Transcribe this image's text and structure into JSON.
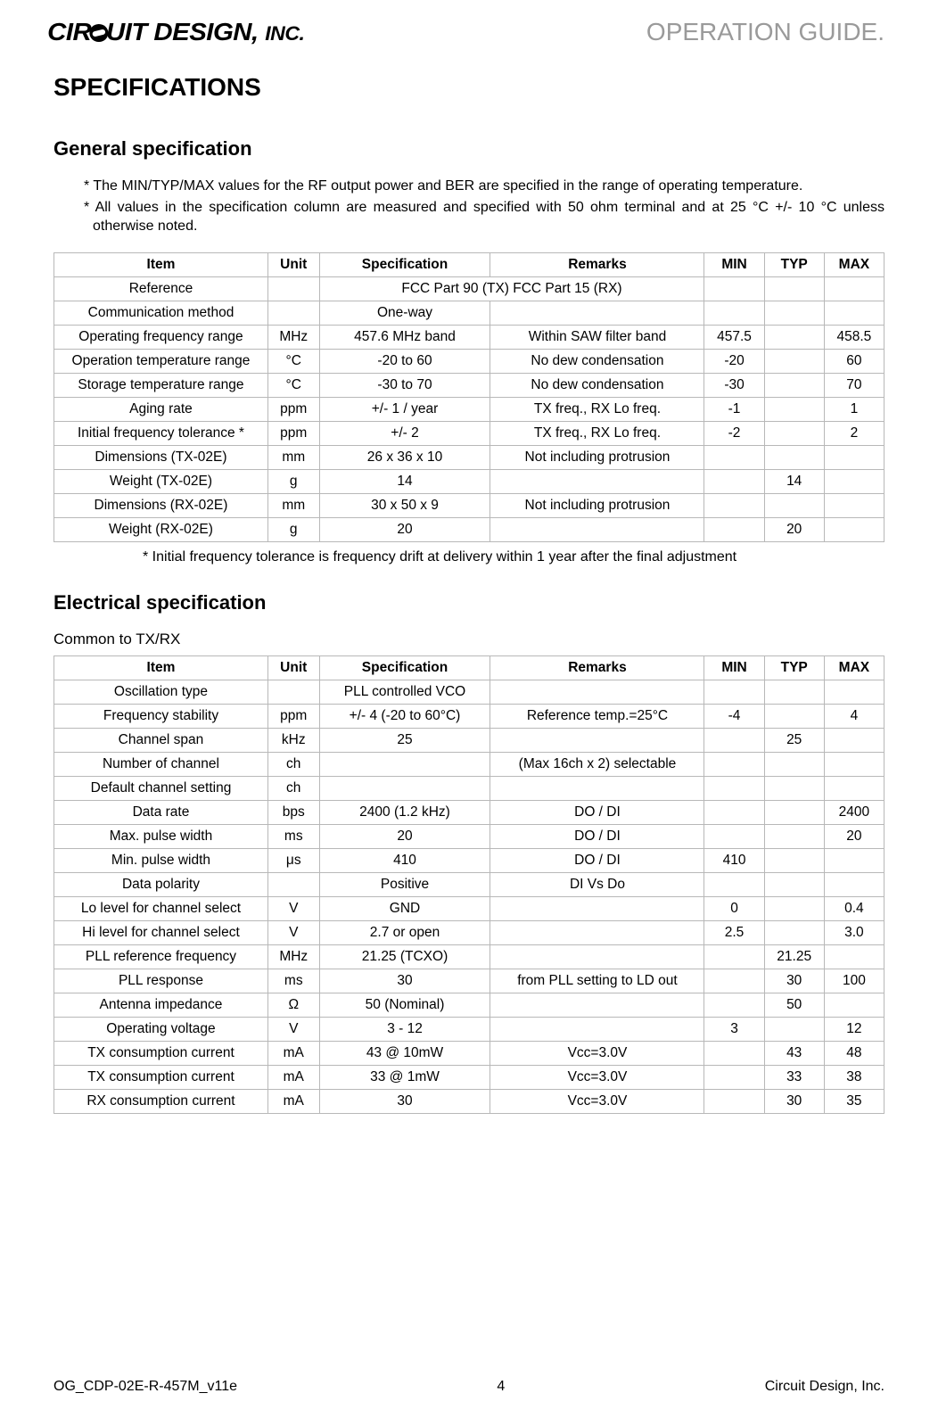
{
  "header": {
    "company_logo_text_left": "CIR",
    "company_logo_text_mid": "UIT DESIGN,",
    "company_logo_text_inc": "INC.",
    "guide_title": "OPERATION GUIDE."
  },
  "main_title": "SPECIFICATIONS",
  "general": {
    "heading": "General specification",
    "note1": "* The MIN/TYP/MAX values for the RF output power and BER are specified in the range of operating temperature.",
    "note2": "* All values in the specification column are measured and specified with 50 ohm terminal and at 25 °C +/- 10 °C unless otherwise noted.",
    "columns": [
      "Item",
      "Unit",
      "Specification",
      "Remarks",
      "MIN",
      "TYP",
      "MAX"
    ],
    "rows": [
      [
        "Reference",
        "",
        "FCC Part 90 (TX)   FCC Part 15 (RX)",
        "",
        "",
        "",
        ""
      ],
      [
        "Communication method",
        "",
        "One-way",
        "",
        "",
        "",
        ""
      ],
      [
        "Operating frequency range",
        "MHz",
        "457.6 MHz band",
        "Within SAW filter band",
        "457.5",
        "",
        "458.5"
      ],
      [
        "Operation temperature range",
        "°C",
        "-20 to 60",
        "No dew condensation",
        "-20",
        "",
        "60"
      ],
      [
        "Storage temperature range",
        "°C",
        "-30 to 70",
        "No dew condensation",
        "-30",
        "",
        "70"
      ],
      [
        "Aging rate",
        "ppm",
        "+/- 1 / year",
        "TX freq., RX Lo freq.",
        "-1",
        "",
        "1"
      ],
      [
        "Initial frequency tolerance *",
        "ppm",
        "+/- 2",
        "TX freq., RX Lo freq.",
        "-2",
        "",
        "2"
      ],
      [
        "Dimensions (TX-02E)",
        "mm",
        "26 x 36 x 10",
        "Not including protrusion",
        "",
        "",
        ""
      ],
      [
        "Weight  (TX-02E)",
        "g",
        "14",
        "",
        "",
        "14",
        ""
      ],
      [
        "Dimensions (RX-02E)",
        "mm",
        "30 x 50 x 9",
        "Not including protrusion",
        "",
        "",
        ""
      ],
      [
        "Weight  (RX-02E)",
        "g",
        "20",
        "",
        "",
        "20",
        ""
      ]
    ],
    "footnote": "* Initial frequency tolerance is frequency drift at delivery within 1 year after the final adjustment"
  },
  "electrical": {
    "heading": "Electrical specification",
    "subheading": "Common to TX/RX",
    "columns": [
      "Item",
      "Unit",
      "Specification",
      "Remarks",
      "MIN",
      "TYP",
      "MAX"
    ],
    "rows": [
      [
        "Oscillation type",
        "",
        "PLL controlled VCO",
        "",
        "",
        "",
        ""
      ],
      [
        "Frequency stability",
        "ppm",
        "+/- 4 (-20 to 60°C)",
        "Reference temp.=25°C",
        "-4",
        "",
        "4"
      ],
      [
        "Channel span",
        "kHz",
        "25",
        "",
        "",
        "25",
        ""
      ],
      [
        "Number of channel",
        "ch",
        "",
        "(Max 16ch x 2) selectable",
        "",
        "",
        ""
      ],
      [
        "Default channel setting",
        "ch",
        "",
        "",
        "",
        "",
        ""
      ],
      [
        "Data rate",
        "bps",
        "2400 (1.2 kHz)",
        "DO / DI",
        "",
        "",
        "2400"
      ],
      [
        "Max. pulse width",
        "ms",
        "20",
        "DO / DI",
        "",
        "",
        "20"
      ],
      [
        "Min. pulse width",
        "μs",
        "410",
        "DO / DI",
        "410",
        "",
        ""
      ],
      [
        "Data polarity",
        "",
        "Positive",
        "DI Vs Do",
        "",
        "",
        ""
      ],
      [
        "Lo level for channel select",
        "V",
        "GND",
        "",
        "0",
        "",
        "0.4"
      ],
      [
        "Hi level for channel select",
        "V",
        "2.7 or open",
        "",
        "2.5",
        "",
        "3.0"
      ],
      [
        "PLL reference frequency",
        "MHz",
        "21.25 (TCXO)",
        "",
        "",
        "21.25",
        ""
      ],
      [
        "PLL response",
        "ms",
        "30",
        "from PLL setting to LD out",
        "",
        "30",
        "100"
      ],
      [
        "Antenna impedance",
        "Ω",
        "50 (Nominal)",
        "",
        "",
        "50",
        ""
      ],
      [
        "Operating voltage",
        "V",
        "3 - 12",
        "",
        "3",
        "",
        "12"
      ],
      [
        "TX consumption current",
        "mA",
        "43 @ 10mW",
        "Vcc=3.0V",
        "",
        "43",
        "48"
      ],
      [
        "TX consumption current",
        "mA",
        "33 @ 1mW",
        "Vcc=3.0V",
        "",
        "33",
        "38"
      ],
      [
        "RX consumption current",
        "mA",
        "30",
        "Vcc=3.0V",
        "",
        "30",
        "35"
      ]
    ]
  },
  "footer": {
    "doc_id": "OG_CDP-02E-R-457M_v11e",
    "page_number": "4",
    "company": "Circuit Design, Inc."
  }
}
